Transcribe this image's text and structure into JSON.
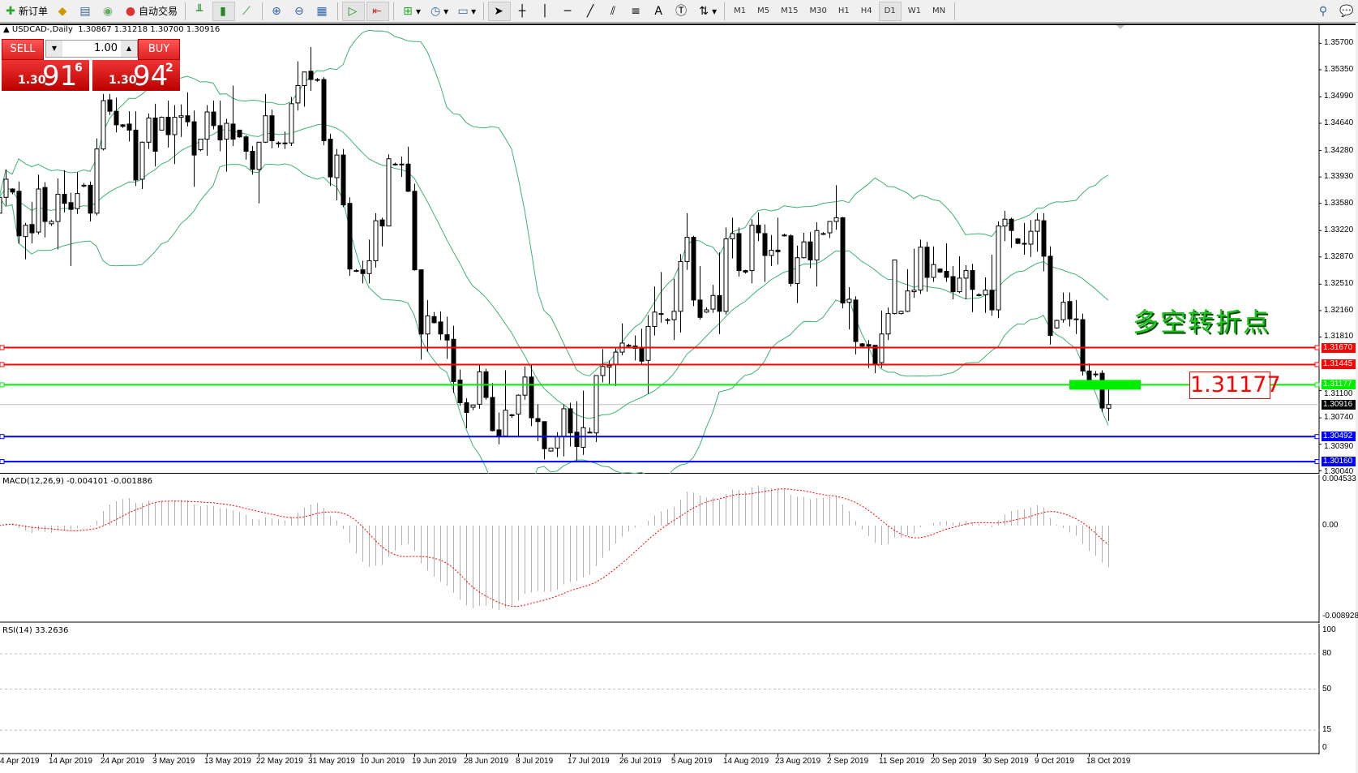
{
  "toolbar": {
    "new_order": "新订单",
    "auto_trading": "自动交易",
    "timeframes": [
      "M1",
      "M5",
      "M15",
      "M30",
      "H1",
      "H4",
      "D1",
      "W1",
      "MN"
    ],
    "active_timeframe": "D1",
    "icons": [
      "new-order-icon",
      "market-watch-icon",
      "data-window-icon",
      "navigator-icon",
      "auto-trading-icon",
      "bar-chart-icon",
      "candlestick-icon",
      "line-chart-icon",
      "zoom-in-icon",
      "zoom-out-icon",
      "tile-windows-icon",
      "auto-scroll-icon",
      "chart-shift-icon",
      "indicators-icon",
      "periods-icon",
      "templates-icon",
      "cursor-icon",
      "crosshair-icon",
      "vertical-line-icon",
      "horizontal-line-icon",
      "trendline-icon",
      "equidistant-channel-icon",
      "fibonacci-icon",
      "text-icon",
      "text-label-icon",
      "arrows-icon",
      "search-icon",
      "chat-icon"
    ]
  },
  "chart": {
    "symbol_title": "USDCAD-,Daily",
    "ohlc_text": "1.30867 1.31218 1.30700 1.30916",
    "annotation_text": "多空转折点",
    "annotation_price": "1.31177"
  },
  "trade_panel": {
    "sell_label": "SELL",
    "buy_label": "BUY",
    "lot": "1.00",
    "sell_small": "1.30",
    "sell_big": "91",
    "sell_sup": "6",
    "buy_small": "1.30",
    "buy_big": "94",
    "buy_sup": "2"
  },
  "colors": {
    "bands": "#3cb371",
    "red_line": "#ff0000",
    "green_line": "#00ee00",
    "blue_line": "#0000ff",
    "bid_line": "#c0c0c0",
    "macd_hist": "#b0b0b0",
    "macd_signal": "#ff0000",
    "rsi": "#1e90ff"
  },
  "chart_data": [
    {
      "type": "candlestick",
      "ylim": [
        1.3,
        1.3594
      ],
      "price_ticks": [
        "1.35700",
        "1.35350",
        "1.34990",
        "1.34640",
        "1.34280",
        "1.33930",
        "1.33580",
        "1.33220",
        "1.32870",
        "1.32510",
        "1.32160",
        "1.31810",
        "1.31100",
        "1.30740",
        "1.30390",
        "1.30040"
      ],
      "date_labels": [
        "4 Apr 2019",
        "14 Apr 2019",
        "24 Apr 2019",
        "3 May 2019",
        "13 May 2019",
        "22 May 2019",
        "31 May 2019",
        "10 Jun 2019",
        "19 Jun 2019",
        "28 Jun 2019",
        "8 Jul 2019",
        "17 Jul 2019",
        "26 Jul 2019",
        "5 Aug 2019",
        "14 Aug 2019",
        "23 Aug 2019",
        "2 Sep 2019",
        "11 Sep 2019",
        "20 Sep 2019",
        "30 Sep 2019",
        "9 Oct 2019",
        "18 Oct 2019"
      ],
      "bid": "1.30916",
      "hlines": [
        {
          "price": "1.31670",
          "color": "#ff0000"
        },
        {
          "price": "1.31445",
          "color": "#ff0000"
        },
        {
          "price": "1.31177",
          "color": "#00ee00"
        },
        {
          "price": "1.30492",
          "color": "#0000ff"
        },
        {
          "price": "1.30160",
          "color": "#0000ff"
        }
      ],
      "bollinger": {
        "period": 20,
        "deviation": 2
      },
      "highlight_zone": {
        "price": 1.31177,
        "from_bar": 165,
        "to_bar": 176
      },
      "candles": [
        [
          1.3345,
          1.3372,
          1.3338,
          1.3366
        ],
        [
          1.3366,
          1.3403,
          1.3355,
          1.339
        ],
        [
          1.3377,
          1.3378,
          1.337,
          1.3373
        ],
        [
          1.3374,
          1.3387,
          1.3305,
          1.3315
        ],
        [
          1.3314,
          1.3332,
          1.3284,
          1.3329
        ],
        [
          1.333,
          1.336,
          1.3305,
          1.3319
        ],
        [
          1.332,
          1.3396,
          1.3317,
          1.3377
        ],
        [
          1.3379,
          1.3386,
          1.3313,
          1.3334
        ],
        [
          1.3331,
          1.3336,
          1.3328,
          1.3334
        ],
        [
          1.3334,
          1.3391,
          1.3297,
          1.337
        ],
        [
          1.337,
          1.3402,
          1.3346,
          1.3358
        ],
        [
          1.3359,
          1.3372,
          1.3275,
          1.335
        ],
        [
          1.3351,
          1.3399,
          1.3344,
          1.3371
        ],
        [
          1.3382,
          1.3385,
          1.3379,
          1.3382
        ],
        [
          1.3382,
          1.3387,
          1.3334,
          1.3345
        ],
        [
          1.3345,
          1.3444,
          1.3342,
          1.343
        ],
        [
          1.343,
          1.3503,
          1.3428,
          1.3494
        ],
        [
          1.3495,
          1.3503,
          1.3475,
          1.348
        ],
        [
          1.348,
          1.3498,
          1.3452,
          1.3462
        ],
        [
          1.3462,
          1.3463,
          1.3458,
          1.346
        ],
        [
          1.3463,
          1.348,
          1.344,
          1.3455
        ],
        [
          1.3455,
          1.348,
          1.3381,
          1.3389
        ],
        [
          1.339,
          1.344,
          1.3377,
          1.3439
        ],
        [
          1.3439,
          1.3477,
          1.343,
          1.3471
        ],
        [
          1.3471,
          1.349,
          1.3407,
          1.3427
        ],
        [
          1.3455,
          1.3473,
          1.3455,
          1.3472
        ],
        [
          1.3472,
          1.3494,
          1.3432,
          1.3449
        ],
        [
          1.3449,
          1.3488,
          1.341,
          1.3472
        ],
        [
          1.3472,
          1.3489,
          1.3446,
          1.3474
        ],
        [
          1.3474,
          1.3505,
          1.346,
          1.3466
        ],
        [
          1.3466,
          1.3481,
          1.338,
          1.3422
        ],
        [
          1.3429,
          1.3443,
          1.3427,
          1.3443
        ],
        [
          1.3443,
          1.3488,
          1.3421,
          1.3479
        ],
        [
          1.3479,
          1.3494,
          1.3456,
          1.3461
        ],
        [
          1.3461,
          1.3494,
          1.3427,
          1.3442
        ],
        [
          1.3443,
          1.347,
          1.34,
          1.3464
        ],
        [
          1.3463,
          1.3514,
          1.3434,
          1.3443
        ],
        [
          1.3455,
          1.3455,
          1.3445,
          1.3446
        ],
        [
          1.3446,
          1.3448,
          1.3416,
          1.3427
        ],
        [
          1.3427,
          1.3434,
          1.3396,
          1.3403
        ],
        [
          1.3403,
          1.3439,
          1.3358,
          1.3439
        ],
        [
          1.3439,
          1.3503,
          1.3438,
          1.3474
        ],
        [
          1.3474,
          1.3482,
          1.3431,
          1.3441
        ],
        [
          1.3438,
          1.344,
          1.3432,
          1.3438
        ],
        [
          1.3438,
          1.3453,
          1.343,
          1.3438
        ],
        [
          1.3438,
          1.3499,
          1.3434,
          1.349
        ],
        [
          1.3491,
          1.3546,
          1.3481,
          1.3514
        ],
        [
          1.3514,
          1.3532,
          1.3486,
          1.3532
        ],
        [
          1.3533,
          1.3565,
          1.3507,
          1.3522
        ],
        [
          1.3522,
          1.3524,
          1.3519,
          1.3522
        ],
        [
          1.3522,
          1.3525,
          1.3435,
          1.3441
        ],
        [
          1.3443,
          1.345,
          1.3381,
          1.3393
        ],
        [
          1.3392,
          1.343,
          1.3362,
          1.3422
        ],
        [
          1.3422,
          1.343,
          1.3353,
          1.3356
        ],
        [
          1.3358,
          1.3366,
          1.3262,
          1.3271
        ],
        [
          1.3269,
          1.3271,
          1.3267,
          1.3269
        ],
        [
          1.327,
          1.3282,
          1.3252,
          1.3265
        ],
        [
          1.3265,
          1.331,
          1.3252,
          1.3282
        ],
        [
          1.3282,
          1.3345,
          1.3273,
          1.3335
        ],
        [
          1.3336,
          1.3339,
          1.3301,
          1.3328
        ],
        [
          1.3328,
          1.3423,
          1.3328,
          1.3417
        ],
        [
          1.341,
          1.3412,
          1.3408,
          1.341
        ],
        [
          1.341,
          1.342,
          1.3393,
          1.341
        ],
        [
          1.341,
          1.3433,
          1.3373,
          1.3374
        ],
        [
          1.3374,
          1.3384,
          1.3269,
          1.327
        ],
        [
          1.327,
          1.327,
          1.3151,
          1.3185
        ],
        [
          1.3185,
          1.323,
          1.3162,
          1.3209
        ],
        [
          1.3208,
          1.3214,
          1.3199,
          1.32
        ],
        [
          1.3201,
          1.3215,
          1.3177,
          1.3185
        ],
        [
          1.3184,
          1.3208,
          1.3152,
          1.3177
        ],
        [
          1.3178,
          1.3196,
          1.3107,
          1.3122
        ],
        [
          1.3124,
          1.3138,
          1.309,
          1.3094
        ],
        [
          1.3094,
          1.31,
          1.306,
          1.3081
        ],
        [
          1.3088,
          1.3091,
          1.3084,
          1.3091
        ],
        [
          1.3092,
          1.3145,
          1.3086,
          1.3135
        ],
        [
          1.3135,
          1.3139,
          1.3098,
          1.3101
        ],
        [
          1.3101,
          1.312,
          1.3056,
          1.3057
        ],
        [
          1.3058,
          1.3081,
          1.3039,
          1.305
        ],
        [
          1.305,
          1.3137,
          1.3049,
          1.3084
        ],
        [
          1.3078,
          1.3079,
          1.3074,
          1.3078
        ],
        [
          1.3079,
          1.3105,
          1.305,
          1.3104
        ],
        [
          1.3104,
          1.3142,
          1.3098,
          1.3128
        ],
        [
          1.3128,
          1.3144,
          1.3063,
          1.3074
        ],
        [
          1.3073,
          1.3092,
          1.3043,
          1.3069
        ],
        [
          1.3069,
          1.3069,
          1.3019,
          1.3033
        ],
        [
          1.303,
          1.3034,
          1.3029,
          1.3034
        ],
        [
          1.3034,
          1.3055,
          1.3022,
          1.3049
        ],
        [
          1.3049,
          1.3092,
          1.3023,
          1.3086
        ],
        [
          1.3086,
          1.3094,
          1.3036,
          1.3054
        ],
        [
          1.3055,
          1.3096,
          1.3017,
          1.3036
        ],
        [
          1.3035,
          1.311,
          1.3025,
          1.3061
        ],
        [
          1.3055,
          1.3061,
          1.3055,
          1.3055
        ],
        [
          1.3054,
          1.313,
          1.3042,
          1.313
        ],
        [
          1.313,
          1.3165,
          1.3121,
          1.3142
        ],
        [
          1.3141,
          1.315,
          1.3119,
          1.3143
        ],
        [
          1.3144,
          1.3168,
          1.3116,
          1.3161
        ],
        [
          1.3161,
          1.3199,
          1.3157,
          1.3173
        ],
        [
          1.317,
          1.3172,
          1.3168,
          1.317
        ],
        [
          1.3169,
          1.3183,
          1.315,
          1.3166
        ],
        [
          1.3166,
          1.3192,
          1.3144,
          1.3149
        ],
        [
          1.315,
          1.321,
          1.3106,
          1.3195
        ],
        [
          1.3195,
          1.3248,
          1.3183,
          1.3214
        ],
        [
          1.3212,
          1.3267,
          1.32,
          1.3212
        ],
        [
          1.3204,
          1.3206,
          1.3198,
          1.3204
        ],
        [
          1.3204,
          1.3258,
          1.3177,
          1.3215
        ],
        [
          1.3215,
          1.3291,
          1.3187,
          1.3281
        ],
        [
          1.3281,
          1.3345,
          1.327,
          1.3313
        ],
        [
          1.3313,
          1.3315,
          1.3222,
          1.323
        ],
        [
          1.323,
          1.3275,
          1.3204,
          1.3207
        ],
        [
          1.3214,
          1.322,
          1.3213,
          1.3217
        ],
        [
          1.3218,
          1.325,
          1.3213,
          1.3236
        ],
        [
          1.3236,
          1.3293,
          1.3185,
          1.3215
        ],
        [
          1.3215,
          1.3326,
          1.3211,
          1.3311
        ],
        [
          1.3311,
          1.3339,
          1.3285,
          1.3318
        ],
        [
          1.3318,
          1.3326,
          1.3261,
          1.3269
        ],
        [
          1.3269,
          1.327,
          1.3265,
          1.3267
        ],
        [
          1.3269,
          1.3337,
          1.3252,
          1.3329
        ],
        [
          1.3329,
          1.3346,
          1.3308,
          1.3319
        ],
        [
          1.3318,
          1.333,
          1.3254,
          1.3289
        ],
        [
          1.3289,
          1.3316,
          1.3275,
          1.3296
        ],
        [
          1.3296,
          1.3339,
          1.3277,
          1.3294
        ],
        [
          1.3316,
          1.3318,
          1.3314,
          1.3316
        ],
        [
          1.3315,
          1.3317,
          1.3248,
          1.3252
        ],
        [
          1.3252,
          1.3302,
          1.3226,
          1.3286
        ],
        [
          1.3286,
          1.3319,
          1.3285,
          1.3307
        ],
        [
          1.3307,
          1.332,
          1.3272,
          1.3283
        ],
        [
          1.3283,
          1.3333,
          1.3248,
          1.3322
        ],
        [
          1.3318,
          1.332,
          1.3316,
          1.3318
        ],
        [
          1.3319,
          1.3334,
          1.3312,
          1.3334
        ],
        [
          1.3334,
          1.3382,
          1.3323,
          1.3339
        ],
        [
          1.3339,
          1.334,
          1.3219,
          1.3226
        ],
        [
          1.3227,
          1.3247,
          1.3191,
          1.3231
        ],
        [
          1.323,
          1.3235,
          1.3158,
          1.3175
        ],
        [
          1.3172,
          1.3173,
          1.3168,
          1.3169
        ],
        [
          1.3171,
          1.3177,
          1.314,
          1.3169
        ],
        [
          1.317,
          1.317,
          1.3133,
          1.3145
        ],
        [
          1.3147,
          1.3216,
          1.314,
          1.3185
        ],
        [
          1.3185,
          1.322,
          1.3177,
          1.3212
        ],
        [
          1.3212,
          1.3283,
          1.3211,
          1.3283
        ],
        [
          1.3212,
          1.3216,
          1.3211,
          1.3215
        ],
        [
          1.3215,
          1.3271,
          1.3214,
          1.3242
        ],
        [
          1.3241,
          1.3298,
          1.3233,
          1.3243
        ],
        [
          1.3243,
          1.331,
          1.3238,
          1.33
        ],
        [
          1.33,
          1.3307,
          1.3241,
          1.326
        ],
        [
          1.326,
          1.3301,
          1.3254,
          1.3277
        ],
        [
          1.3271,
          1.3272,
          1.3266,
          1.3267
        ],
        [
          1.3268,
          1.3305,
          1.3254,
          1.326
        ],
        [
          1.3261,
          1.3275,
          1.3231,
          1.3241
        ],
        [
          1.3241,
          1.3288,
          1.3239,
          1.3259
        ],
        [
          1.3259,
          1.3276,
          1.3231,
          1.3269
        ],
        [
          1.3269,
          1.3278,
          1.3214,
          1.3244
        ],
        [
          1.3237,
          1.3239,
          1.3235,
          1.3237
        ],
        [
          1.3237,
          1.326,
          1.3213,
          1.3243
        ],
        [
          1.3243,
          1.329,
          1.3209,
          1.3217
        ],
        [
          1.3217,
          1.3334,
          1.3206,
          1.3328
        ],
        [
          1.3328,
          1.3348,
          1.3308,
          1.3337
        ],
        [
          1.3337,
          1.3339,
          1.3299,
          1.3322
        ],
        [
          1.3311,
          1.3312,
          1.3304,
          1.3305
        ],
        [
          1.3305,
          1.3332,
          1.329,
          1.3305
        ],
        [
          1.3304,
          1.3336,
          1.3287,
          1.3321
        ],
        [
          1.3321,
          1.3345,
          1.3294,
          1.3336
        ],
        [
          1.3335,
          1.3345,
          1.3268,
          1.3288
        ],
        [
          1.3288,
          1.3301,
          1.3171,
          1.3183
        ],
        [
          1.3193,
          1.3204,
          1.3192,
          1.3203
        ],
        [
          1.3204,
          1.324,
          1.32,
          1.3227
        ],
        [
          1.3228,
          1.324,
          1.3195,
          1.3205
        ],
        [
          1.3205,
          1.323,
          1.3185,
          1.3205
        ],
        [
          1.3204,
          1.3212,
          1.313,
          1.3136
        ],
        [
          1.3136,
          1.3146,
          1.3121,
          1.3123
        ],
        [
          1.3132,
          1.3136,
          1.3128,
          1.3132
        ],
        [
          1.3133,
          1.3137,
          1.3082,
          1.3087
        ],
        [
          1.30867,
          1.31218,
          1.307,
          1.30916
        ]
      ]
    },
    {
      "type": "bar",
      "title": "MACD(12,26,9) -0.004101 -0.001886",
      "params": [
        12,
        26,
        9
      ],
      "values_printed": [
        -0.004101,
        -0.001886
      ],
      "ylim": [
        -0.008928,
        0.004533
      ],
      "ticks": [
        "0.004533",
        "0.00",
        "-0.008928"
      ]
    },
    {
      "type": "line",
      "title": "RSI(14) 33.2636",
      "period": 14,
      "value_printed": 33.2636,
      "ylim": [
        0,
        100
      ],
      "ticks": [
        "100",
        "80",
        "50",
        "15",
        "0"
      ],
      "levels": [
        80,
        50,
        15
      ]
    }
  ]
}
